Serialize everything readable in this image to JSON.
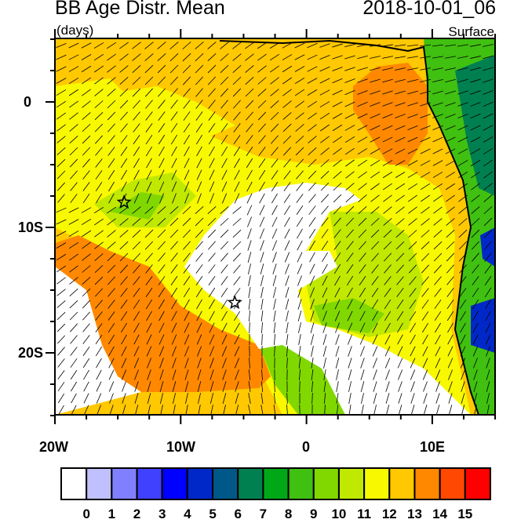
{
  "title": "BB Age Distr. Mean",
  "date": "2018-10-01_06",
  "units": "(days)",
  "level": "Surface",
  "lat_labels": [
    "0",
    "10S",
    "20S"
  ],
  "lon_labels": [
    "20W",
    "10W",
    "0",
    "10E"
  ],
  "colorbar": {
    "labels": [
      "0",
      "1",
      "2",
      "3",
      "4",
      "5",
      "6",
      "7",
      "8",
      "9",
      "10",
      "11",
      "12",
      "13",
      "14",
      "15"
    ],
    "colors": [
      "#ffffff",
      "#c0c0ff",
      "#8080ff",
      "#4040ff",
      "#0000ff",
      "#0028c8",
      "#005888",
      "#008050",
      "#00a818",
      "#40c010",
      "#80d800",
      "#c0e800",
      "#f8f800",
      "#ffc800",
      "#ff8800",
      "#ff4800",
      "#ff0000"
    ]
  },
  "markers": [
    {
      "name": "star",
      "lon": -14.5,
      "lat": -8
    },
    {
      "name": "star",
      "lon": -5.7,
      "lat": -16
    }
  ]
}
